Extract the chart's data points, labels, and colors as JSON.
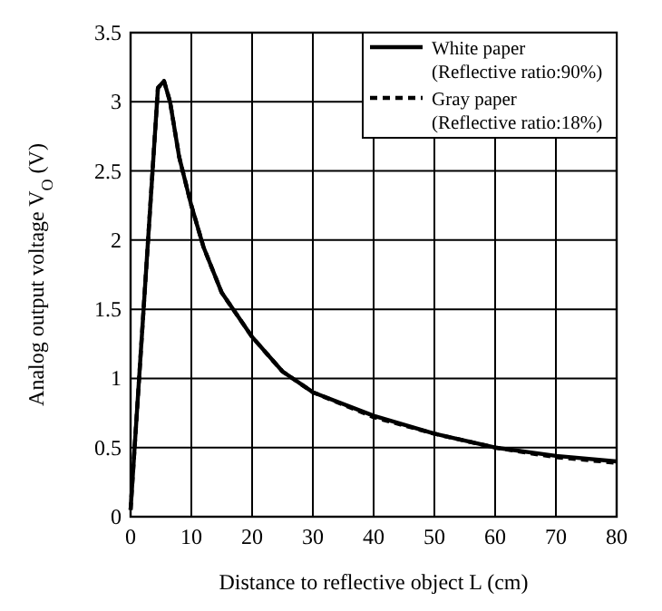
{
  "chart_data": {
    "type": "line",
    "xlabel": "Distance to reflective object L (cm)",
    "ylabel": "Analog output voltage V$_{O}$ (V)",
    "xlim": [
      0,
      80
    ],
    "xticks": [
      0,
      10,
      20,
      30,
      40,
      50,
      60,
      70,
      80
    ],
    "ylim": [
      0,
      3.5
    ],
    "yticks": [
      0,
      0.5,
      1,
      1.5,
      2,
      2.5,
      3,
      3.5
    ],
    "grid": true,
    "legend": "top right",
    "series": [
      {
        "name": "White paper\n(Reflective ratio:90%)",
        "color": "#000000",
        "line_style": "solid",
        "x": [
          0,
          4.5,
          5.5,
          6.5,
          8,
          10,
          12,
          15,
          20,
          25,
          30,
          40,
          50,
          60,
          70,
          80
        ],
        "values": [
          0.05,
          3.1,
          3.15,
          3.0,
          2.6,
          2.25,
          1.95,
          1.62,
          1.3,
          1.05,
          0.9,
          0.73,
          0.6,
          0.5,
          0.44,
          0.4
        ]
      },
      {
        "name": "Gray paper\n(Reflective ratio:18%)",
        "color": "#000000",
        "line_style": "dashed",
        "x": [
          0,
          4.5,
          5.5,
          6.5,
          8,
          10,
          12,
          15,
          20,
          25,
          30,
          40,
          50,
          60,
          70,
          80
        ],
        "values": [
          0.05,
          3.1,
          3.15,
          3.0,
          2.6,
          2.25,
          1.95,
          1.62,
          1.3,
          1.05,
          0.9,
          0.72,
          0.6,
          0.5,
          0.43,
          0.39
        ]
      }
    ]
  }
}
